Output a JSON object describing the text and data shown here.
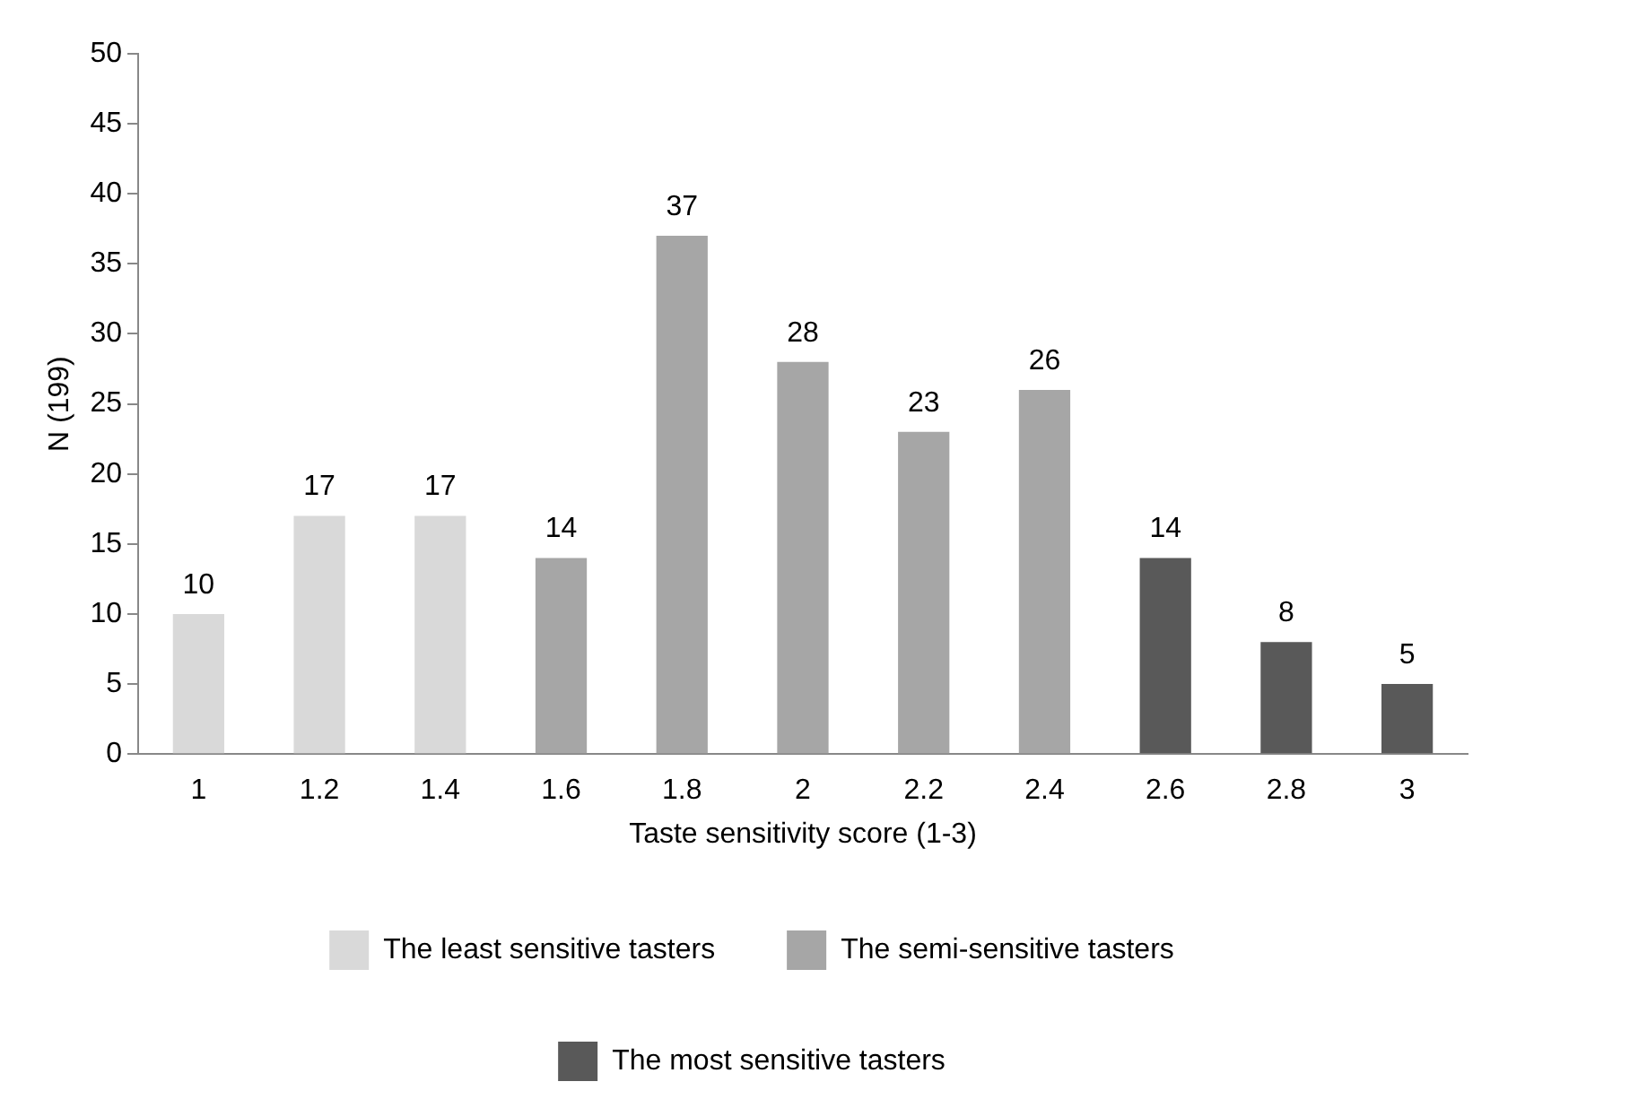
{
  "chart_data": {
    "type": "bar",
    "xlabel": "Taste sensitivity score (1-3)",
    "ylabel": "N (199)",
    "categories": [
      "1",
      "1.2",
      "1.4",
      "1.6",
      "1.8",
      "2",
      "2.2",
      "2.4",
      "2.6",
      "2.8",
      "3"
    ],
    "series": [
      {
        "name": "The least sensitive tasters",
        "color": "#d9d9d9",
        "values": [
          10,
          17,
          17,
          null,
          null,
          null,
          null,
          null,
          null,
          null,
          null
        ]
      },
      {
        "name": "The semi-sensitive tasters",
        "color": "#a6a6a6",
        "values": [
          null,
          null,
          null,
          14,
          37,
          28,
          23,
          26,
          null,
          null,
          null
        ]
      },
      {
        "name": "The most sensitive tasters",
        "color": "#595959",
        "values": [
          null,
          null,
          null,
          null,
          null,
          null,
          null,
          null,
          14,
          8,
          5
        ]
      }
    ],
    "ylim": [
      0,
      50
    ],
    "yticks": [
      0,
      5,
      10,
      15,
      20,
      25,
      30,
      35,
      40,
      45,
      50
    ],
    "grid": false,
    "legend": "bottom",
    "data_labels": true
  }
}
